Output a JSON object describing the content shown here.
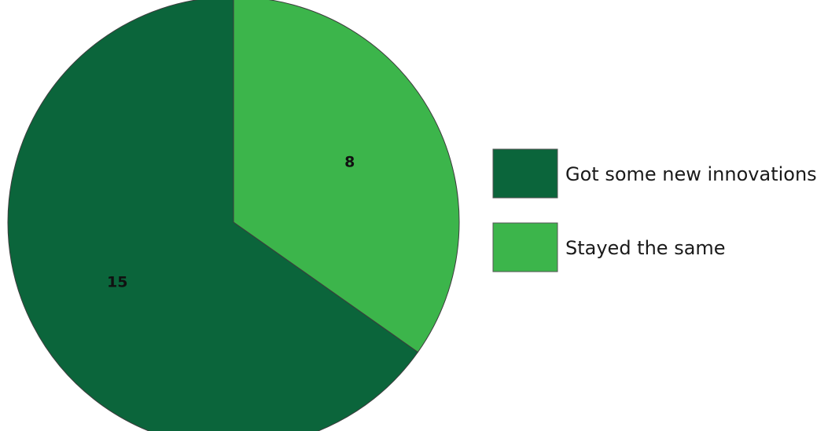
{
  "chart_data": {
    "type": "pie",
    "categories": [
      "Got some new innovations",
      "Stayed the same"
    ],
    "values": [
      15,
      8
    ],
    "colors": [
      "#0b653b",
      "#3cb54b"
    ],
    "data_labels": [
      "15",
      "8"
    ],
    "start": "top",
    "direction": "counterclockwise",
    "legend": {
      "placement": "right",
      "entries": [
        "Got some new innovations",
        "Stayed the same"
      ]
    }
  }
}
